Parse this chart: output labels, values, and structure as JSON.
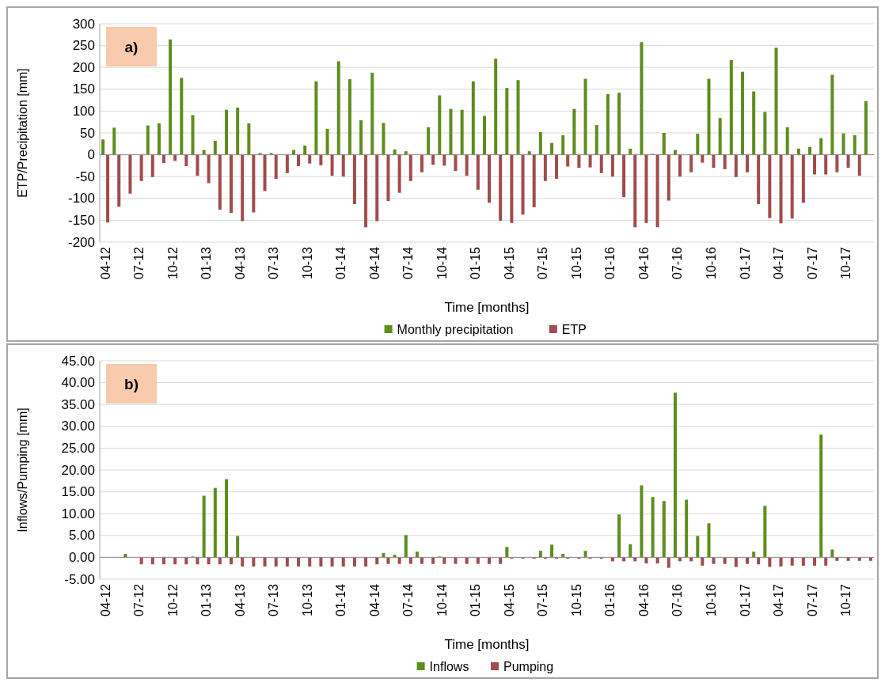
{
  "chart_data": [
    {
      "type": "bar",
      "title": "a)",
      "xlabel": "Time [months]",
      "ylabel": "ETP/Precipitation [mm]",
      "categories": [
        "04-12",
        null,
        null,
        "07-12",
        null,
        null,
        "10-12",
        null,
        null,
        "01-13",
        null,
        null,
        "04-13",
        null,
        null,
        "07-13",
        null,
        null,
        "10-13",
        null,
        null,
        "01-14",
        null,
        null,
        "04-14",
        null,
        null,
        "07-14",
        null,
        null,
        "10-14",
        null,
        null,
        "01-15",
        null,
        null,
        "04-15",
        null,
        null,
        "07-15",
        null,
        null,
        "10-15",
        null,
        null,
        "01-16",
        null,
        null,
        "04-16",
        null,
        null,
        "07-16",
        null,
        null,
        "10-16",
        null,
        null,
        "01-17",
        null,
        null,
        "04-17",
        null,
        null,
        "07-17",
        null,
        null,
        "10-17",
        null,
        null
      ],
      "series": [
        {
          "name": "Monthly precipitation",
          "color": "#5f8c1e",
          "values": [
            35,
            62,
            0,
            0,
            67,
            72,
            264,
            176,
            91,
            11,
            32,
            103,
            108,
            72,
            4,
            4,
            0,
            11,
            21,
            168,
            59,
            214,
            173,
            79,
            188,
            73,
            12,
            8,
            0,
            63,
            136,
            105,
            103,
            168,
            89,
            220,
            153,
            171,
            8,
            52,
            27,
            45,
            105,
            174,
            68,
            139,
            142,
            14,
            258,
            2,
            50,
            11,
            0,
            48,
            174,
            84,
            217,
            190,
            145,
            98,
            245,
            63,
            14,
            18,
            38,
            183,
            49,
            45,
            123
          ]
        },
        {
          "name": "ETP",
          "color": "#a04c4c",
          "values": [
            -155,
            -119,
            -89,
            -60,
            -51,
            -19,
            -14,
            -26,
            -48,
            -65,
            -126,
            -133,
            -152,
            -132,
            -83,
            -55,
            -42,
            -26,
            -20,
            -24,
            -48,
            -50,
            -113,
            -166,
            -152,
            -106,
            -87,
            -60,
            -40,
            -23,
            -25,
            -37,
            -48,
            -80,
            -110,
            -151,
            -156,
            -137,
            -120,
            -60,
            -55,
            -27,
            -30,
            -29,
            -42,
            -50,
            -97,
            -166,
            -156,
            -166,
            -105,
            -50,
            -40,
            -18,
            -30,
            -33,
            -51,
            -40,
            -113,
            -145,
            -157,
            -146,
            -110,
            -45,
            -45,
            -40,
            -30,
            -48,
            null
          ]
        }
      ],
      "ylim": [
        -200,
        300
      ],
      "yticks": [
        -200,
        -150,
        -100,
        -50,
        0,
        50,
        100,
        150,
        200,
        250,
        300
      ],
      "grid": "y",
      "legend": "bottom"
    },
    {
      "type": "bar",
      "title": "b)",
      "xlabel": "Time [months]",
      "ylabel": "Inflows/Pumping  [mm]",
      "categories": [
        "04-12",
        null,
        null,
        "07-12",
        null,
        null,
        "10-12",
        null,
        null,
        "01-13",
        null,
        null,
        "04-13",
        null,
        null,
        "07-13",
        null,
        null,
        "10-13",
        null,
        null,
        "01-14",
        null,
        null,
        "04-14",
        null,
        null,
        "07-14",
        null,
        null,
        "10-14",
        null,
        null,
        "01-15",
        null,
        null,
        "04-15",
        null,
        null,
        "07-15",
        null,
        null,
        "10-15",
        null,
        null,
        "01-16",
        null,
        null,
        "04-16",
        null,
        null,
        "07-16",
        null,
        null,
        "10-16",
        null,
        null,
        "01-17",
        null,
        null,
        "04-17",
        null,
        null,
        "07-17",
        null,
        null,
        "10-17",
        null,
        null
      ],
      "series": [
        {
          "name": "Inflows",
          "color": "#5f8c1e",
          "values": [
            0,
            0,
            0.8,
            0,
            0,
            0,
            0,
            0,
            0.2,
            14.1,
            15.9,
            17.9,
            4.9,
            0,
            0,
            0,
            0,
            0,
            0,
            0,
            0,
            0,
            0,
            0,
            0,
            1.0,
            0.6,
            5.1,
            1.3,
            0,
            0.2,
            0,
            0,
            0,
            0,
            0,
            2.4,
            0,
            0,
            1.5,
            2.9,
            0.8,
            0,
            1.5,
            0,
            0,
            9.8,
            3.0,
            16.5,
            13.8,
            12.9,
            37.7,
            13.2,
            4.9,
            7.8,
            0,
            0,
            0,
            1.3,
            11.8,
            0,
            0,
            0,
            0,
            28.1,
            1.8,
            0,
            0,
            0
          ]
        },
        {
          "name": "Pumping",
          "color": "#a04c4c",
          "values": [
            0,
            0,
            0,
            -1.6,
            -1.6,
            -1.6,
            -1.6,
            -1.6,
            -1.6,
            -1.6,
            -1.6,
            -1.6,
            -2.1,
            -2.1,
            -2.1,
            -2.1,
            -2.1,
            -2.1,
            -2.1,
            -2.1,
            -2.1,
            -2.1,
            -2.1,
            -2.1,
            -1.6,
            -1.5,
            -1.5,
            -1.5,
            -1.5,
            -1.5,
            -1.5,
            -1.5,
            -1.5,
            -1.5,
            -1.5,
            -1.5,
            -0.3,
            -0.3,
            -0.3,
            -0.3,
            -0.3,
            -0.3,
            -0.3,
            -0.3,
            -0.3,
            -0.9,
            -0.9,
            -0.9,
            -1.4,
            -1.4,
            -2.4,
            -0.9,
            -0.9,
            -1.9,
            -1.5,
            -1.5,
            -2.2,
            -1.5,
            -1.6,
            -2.2,
            -2.1,
            -1.9,
            -1.9,
            -1.9,
            -1.9,
            -0.8,
            -0.8,
            -0.8,
            -0.8
          ]
        }
      ],
      "ylim": [
        -5,
        45
      ],
      "yticks": [
        {
          "value": -5,
          "label": "-5.00"
        },
        {
          "value": 0,
          "label": "0.00"
        },
        {
          "value": 5,
          "label": "5.00"
        },
        {
          "value": 10,
          "label": "10.00"
        },
        {
          "value": 15,
          "label": "15.00"
        },
        {
          "value": 20,
          "label": "20.00"
        },
        {
          "value": 25,
          "label": "25.00"
        },
        {
          "value": 30,
          "label": "30.00"
        },
        {
          "value": 35,
          "label": "35.00"
        },
        {
          "value": 40,
          "label": "40.00"
        },
        {
          "value": 45,
          "label": "45.00"
        }
      ],
      "grid": "y",
      "legend": "bottom"
    }
  ]
}
